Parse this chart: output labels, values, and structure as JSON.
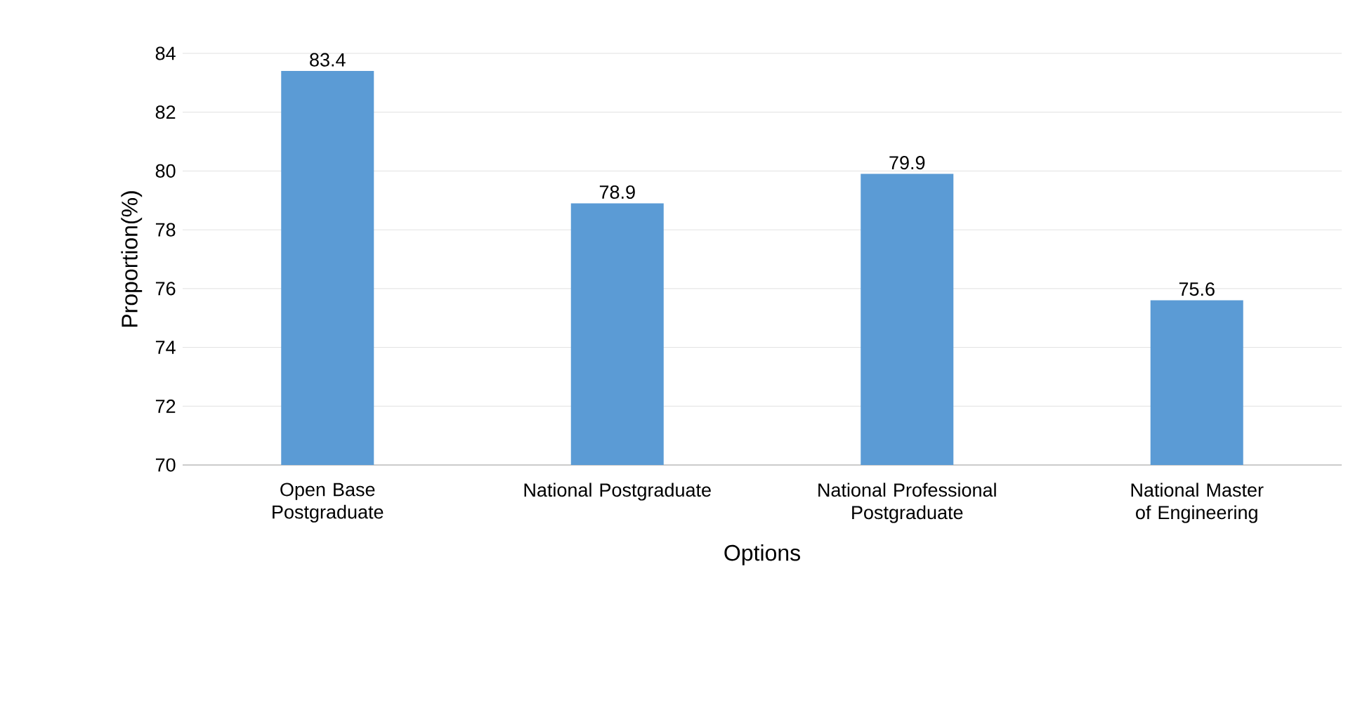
{
  "chart_data": {
    "type": "bar",
    "xlabel": "Options",
    "ylabel": "Proportion(%)",
    "categories": [
      "Open Base Postgraduate",
      "National Postgraduate",
      "National Professional Postgraduate",
      "National Master of Engineering"
    ],
    "values": [
      83.4,
      78.9,
      79.9,
      75.6
    ],
    "color": "#5b9bd5",
    "ylim": [
      70,
      84
    ],
    "yticks": [
      70,
      72,
      74,
      76,
      78,
      80,
      82,
      84
    ],
    "grid": "y",
    "data_labels": true
  }
}
